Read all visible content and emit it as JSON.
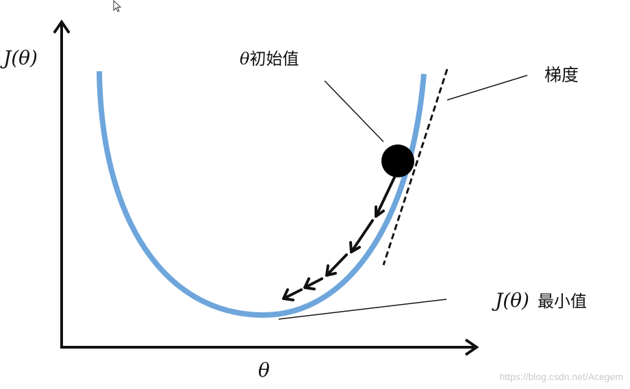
{
  "diagram": {
    "y_axis_label": "J(θ)",
    "x_axis_label": "θ",
    "initial_value_label": {
      "symbol": "θ",
      "text": "初始值"
    },
    "gradient_label": "梯度",
    "minimum_label": {
      "symbol": "J(θ)",
      "text": "最小值"
    },
    "curve_color": "#6ea6dc",
    "axis_color": "#111111",
    "descent_step_arrows": 4
  },
  "watermark": "https://blog.csdn.net/Acegem"
}
